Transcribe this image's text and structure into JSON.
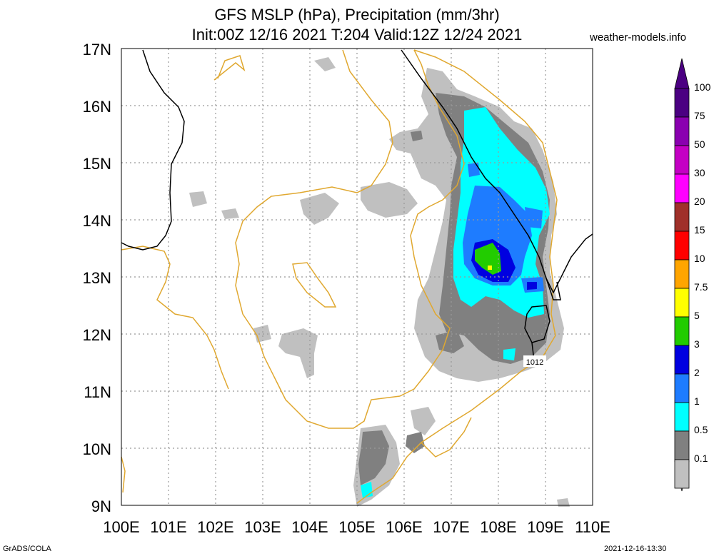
{
  "header": {
    "title_line1": "GFS MSLP (hPa), Precipitation (mm/3hr)",
    "title_line2": "Init:00Z 12/16 2021 T:204 Valid:12Z 12/24 2021",
    "site": "weather-models.info"
  },
  "footer": {
    "left": "GrADS/COLA",
    "right": "2021-12-16-13:30"
  },
  "map": {
    "lat_labels": [
      "17N",
      "16N",
      "15N",
      "14N",
      "13N",
      "12N",
      "11N",
      "10N",
      "9N"
    ],
    "lon_labels": [
      "100E",
      "101E",
      "102E",
      "103E",
      "104E",
      "105E",
      "106E",
      "107E",
      "108E",
      "109E",
      "110E"
    ],
    "isobar_label": "1012",
    "colors": {
      "coast": "#e0a830",
      "isobar": "#000000",
      "grid": "#999999"
    }
  },
  "colorbar": {
    "levels": [
      "100",
      "75",
      "50",
      "30",
      "20",
      "15",
      "10",
      "7.5",
      "5",
      "3",
      "2",
      "1",
      "0.5",
      "0.1"
    ],
    "colors": [
      "#4b0082",
      "#8a00b0",
      "#c400c4",
      "#ff00ff",
      "#a0302a",
      "#ff0000",
      "#ffa500",
      "#ffff00",
      "#22cc00",
      "#0000e0",
      "#1e7cff",
      "#00ffff",
      "#808080",
      "#c0c0c0"
    ]
  }
}
